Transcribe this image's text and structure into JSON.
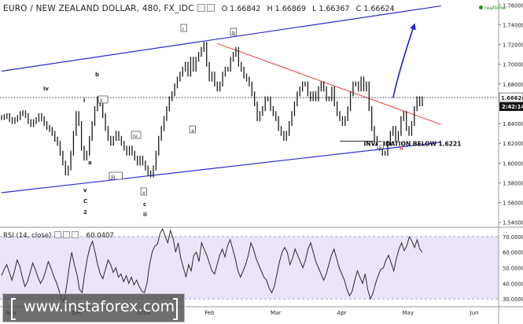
{
  "header": {
    "title": "EURO / NEW ZEALAND DOLLAR, 480, FX_IDC",
    "open": "O 1.66842",
    "high": "H 1.66869",
    "low": "L 1.66367",
    "close": "C 1.66624"
  },
  "status": {
    "realtime": "realtime"
  },
  "rsi": {
    "label": "RSI (14, close)",
    "value": "60.0407"
  },
  "watermark": {
    "text": "www.instaforex.com"
  },
  "colors": {
    "price": "#1a1a1a",
    "channel": "#2b2bd6",
    "resistance": "#e8393d",
    "forecast": "#1f1fe0",
    "rsi_line": "#2a2a2a",
    "rsi_band": "#ece4f8"
  },
  "chart_data": [
    {
      "type": "line",
      "title": "EURO / NEW ZEALAND DOLLAR, 480, FX_IDC",
      "x_ticks": [
        "Nov",
        "Dec",
        "2016",
        "Feb",
        "Mar",
        "Apr",
        "May",
        "Jun"
      ],
      "y_ticks": [
        "1.76000",
        "1.74000",
        "1.72000",
        "1.70000",
        "1.68000",
        "1.66000",
        "1.64000",
        "1.62000",
        "1.60000",
        "1.58000",
        "1.56000",
        "1.54000"
      ],
      "ylim": [
        1.535,
        1.765
      ],
      "last_price": "1.66624",
      "countdown": "2:42:14",
      "series": [
        {
          "values": [
            1.646,
            1.647,
            1.648,
            1.644,
            1.642,
            1.644,
            1.646,
            1.65,
            1.651,
            1.648,
            1.642,
            1.639,
            1.642,
            1.644,
            1.648,
            1.645,
            1.64,
            1.636,
            1.634,
            1.63,
            1.624,
            1.62,
            1.61,
            1.6,
            1.59,
            1.595,
            1.61,
            1.63,
            1.65,
            1.64,
            1.615,
            1.605,
            1.61,
            1.625,
            1.64,
            1.655,
            1.665,
            1.66,
            1.648,
            1.635,
            1.625,
            1.62,
            1.625,
            1.63,
            1.625,
            1.62,
            1.615,
            1.61,
            1.615,
            1.61,
            1.605,
            1.6,
            1.605,
            1.6,
            1.595,
            1.59,
            1.588,
            1.595,
            1.61,
            1.625,
            1.635,
            1.645,
            1.655,
            1.665,
            1.67,
            1.678,
            1.685,
            1.69,
            1.695,
            1.7,
            1.69,
            1.705,
            1.695,
            1.705,
            1.71,
            1.715,
            1.72,
            1.7,
            1.685,
            1.69,
            1.68,
            1.675,
            1.68,
            1.69,
            1.695,
            1.695,
            1.705,
            1.71,
            1.715,
            1.7,
            1.695,
            1.688,
            1.685,
            1.68,
            1.67,
            1.66,
            1.645,
            1.65,
            1.655,
            1.665,
            1.665,
            1.655,
            1.65,
            1.645,
            1.635,
            1.63,
            1.625,
            1.63,
            1.64,
            1.65,
            1.66,
            1.67,
            1.675,
            1.68,
            1.68,
            1.67,
            1.665,
            1.67,
            1.665,
            1.675,
            1.68,
            1.675,
            1.665,
            1.665,
            1.675,
            1.66,
            1.65,
            1.645,
            1.64,
            1.645,
            1.655,
            1.67,
            1.68,
            1.68,
            1.675,
            1.685,
            1.675,
            1.68,
            1.655,
            1.635,
            1.625,
            1.62,
            1.615,
            1.61,
            1.61,
            1.62,
            1.63,
            1.635,
            1.625,
            1.63,
            1.645,
            1.65,
            1.635,
            1.63,
            1.64,
            1.655,
            1.665,
            1.66,
            1.665
          ]
        }
      ],
      "overlays": {
        "upper_channel": [
          [
            0,
            1.693
          ],
          [
            165,
            1.759
          ]
        ],
        "lower_channel": [
          [
            0,
            1.57
          ],
          [
            165,
            1.621
          ]
        ],
        "resistance_line": [
          [
            81,
            1.721
          ],
          [
            165,
            1.639
          ]
        ],
        "dotted_level": 1.66624,
        "invalidation_level": 1.6221,
        "forecast_arrow": [
          [
            147,
            1.666
          ],
          [
            155,
            1.74
          ]
        ]
      },
      "annotations": [
        "iv",
        "b",
        "i",
        "ii",
        "a",
        "v",
        "C",
        "2",
        "iii",
        "iv",
        "i",
        "v",
        "c",
        "ii",
        "a",
        "b",
        "ii",
        "c",
        "INVALIDATION BELOW 1.6221"
      ]
    },
    {
      "type": "line",
      "title": "RSI (14, close)",
      "y_ticks": [
        "70.0000",
        "60.0000",
        "50.0000",
        "40.0000",
        "30.0000"
      ],
      "ylim": [
        25,
        76
      ],
      "band": [
        30,
        70
      ],
      "series": [
        {
          "values": [
            45,
            49,
            52,
            47,
            42,
            48,
            55,
            51,
            44,
            38,
            41,
            47,
            53,
            49,
            44,
            40,
            43,
            48,
            54,
            50,
            45,
            41,
            36,
            30,
            28,
            38,
            50,
            60,
            52,
            46,
            36,
            34,
            46,
            56,
            63,
            67,
            60,
            52,
            46,
            43,
            49,
            55,
            52,
            47,
            50,
            44,
            46,
            41,
            45,
            40,
            44,
            39,
            42,
            38,
            35,
            34,
            40,
            52,
            60,
            64,
            65,
            72,
            75,
            70,
            66,
            74,
            69,
            60,
            66,
            56,
            50,
            44,
            52,
            48,
            58,
            60,
            54,
            66,
            62,
            58,
            53,
            48,
            46,
            52,
            58,
            62,
            57,
            64,
            68,
            62,
            56,
            48,
            44,
            48,
            52,
            58,
            66,
            62,
            56,
            52,
            48,
            44,
            42,
            37,
            34,
            38,
            46,
            54,
            60,
            63,
            60,
            52,
            56,
            62,
            58,
            54,
            50,
            55,
            62,
            66,
            60,
            54,
            50,
            46,
            42,
            46,
            52,
            58,
            62,
            56,
            50,
            46,
            42,
            36,
            32,
            35,
            42,
            48,
            44,
            40,
            46,
            36,
            30,
            34,
            40,
            45,
            49,
            50,
            55,
            58,
            53,
            48,
            56,
            62,
            66,
            61,
            64,
            70,
            67,
            63,
            68,
            62,
            60
          ]
        }
      ]
    }
  ]
}
